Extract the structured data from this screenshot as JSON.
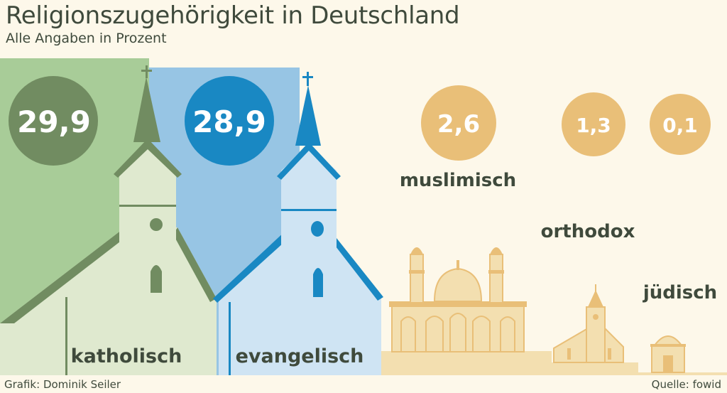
{
  "title": "Religionszugehörigkeit in Deutschland",
  "subtitle": "Alle Angaben in Prozent",
  "credit_left": "Grafik: Dominik Seiler",
  "credit_right": "Quelle: fowid",
  "colors": {
    "background": "#fdf8ea",
    "katholisch_bg": "#a8cc98",
    "katholisch_building": "#dfe9cf",
    "katholisch_dark": "#718c61",
    "evangelisch_bg": "#97c5e4",
    "evangelisch_building": "#cfe4f3",
    "evangelisch_dark": "#1988c3",
    "minor_fill": "#f3dfb0",
    "minor_dark": "#e9bf78",
    "text_dark": "#3f4a3c"
  },
  "chart_data": {
    "type": "bar",
    "title": "Religionszugehörigkeit in Deutschland",
    "subtitle": "Alle Angaben in Prozent",
    "unit": "Prozent",
    "categories": [
      "katholisch",
      "evangelisch",
      "muslimisch",
      "orthodox",
      "jüdisch"
    ],
    "values": [
      29.9,
      28.9,
      2.6,
      1.3,
      0.1
    ],
    "value_labels": [
      "29,9",
      "28,9",
      "2,6",
      "1,3",
      "0,1"
    ],
    "icons": [
      "church-icon",
      "church-icon",
      "mosque-icon",
      "orthodox-church-icon",
      "synagogue-icon"
    ]
  }
}
